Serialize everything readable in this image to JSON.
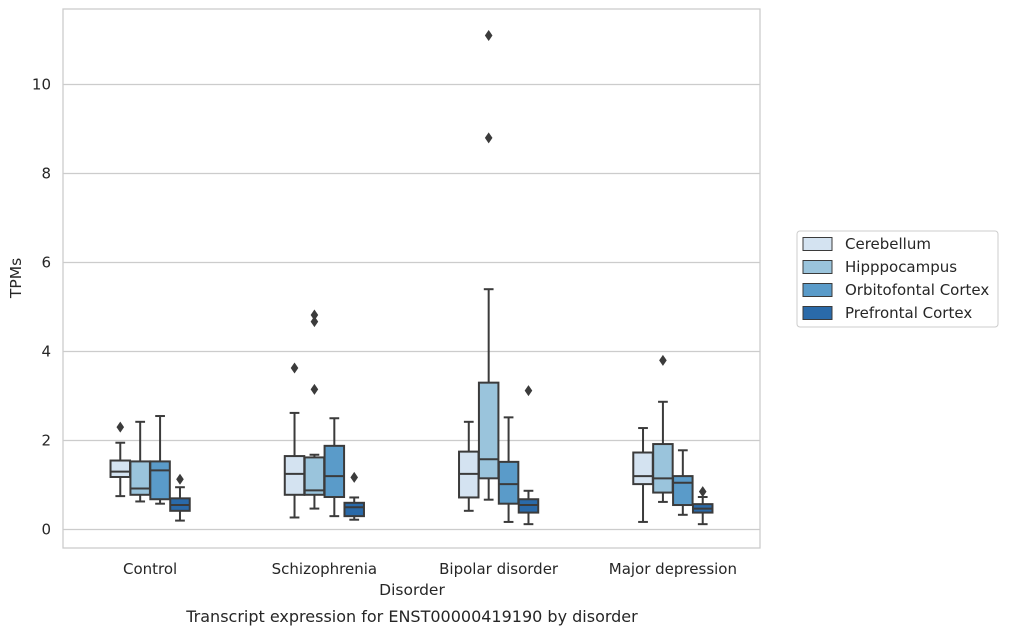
{
  "chart_data": {
    "type": "box",
    "caption": "Transcript expression for ENST00000419190 by disorder",
    "xlabel": "Disorder",
    "ylabel": "TPMs",
    "ylim": [
      -0.4,
      11.6
    ],
    "yticks": [
      0,
      2,
      4,
      6,
      8,
      10
    ],
    "grid": true,
    "legend_position": "right",
    "categories": [
      "Control",
      "Schizophrenia",
      "Bipolar disorder",
      "Major depression"
    ],
    "series": [
      {
        "name": "Cerebellum",
        "color": "#d4e3f1",
        "boxes": [
          {
            "whisker_low": 0.75,
            "q1": 1.18,
            "median": 1.3,
            "q3": 1.55,
            "whisker_high": 1.95,
            "outliers": [
              2.3
            ]
          },
          {
            "whisker_low": 0.27,
            "q1": 0.78,
            "median": 1.25,
            "q3": 1.65,
            "whisker_high": 2.62,
            "outliers": [
              3.63
            ]
          },
          {
            "whisker_low": 0.42,
            "q1": 0.72,
            "median": 1.25,
            "q3": 1.75,
            "whisker_high": 2.42,
            "outliers": []
          },
          {
            "whisker_low": 0.17,
            "q1": 1.02,
            "median": 1.2,
            "q3": 1.73,
            "whisker_high": 2.28,
            "outliers": []
          }
        ]
      },
      {
        "name": "Hipppocampus",
        "color": "#9ac4dc",
        "boxes": [
          {
            "whisker_low": 0.63,
            "q1": 0.78,
            "median": 0.92,
            "q3": 1.53,
            "whisker_high": 2.42,
            "outliers": []
          },
          {
            "whisker_low": 0.47,
            "q1": 0.78,
            "median": 0.88,
            "q3": 1.62,
            "whisker_high": 1.68,
            "outliers": [
              4.67,
              4.82,
              3.15
            ]
          },
          {
            "whisker_low": 0.67,
            "q1": 1.15,
            "median": 1.58,
            "q3": 3.3,
            "whisker_high": 5.4,
            "outliers": [
              8.8,
              11.1
            ]
          },
          {
            "whisker_low": 0.62,
            "q1": 0.83,
            "median": 1.15,
            "q3": 1.92,
            "whisker_high": 2.87,
            "outliers": [
              3.8
            ]
          }
        ]
      },
      {
        "name": "Orbitofontal Cortex",
        "color": "#5a9bc9",
        "boxes": [
          {
            "whisker_low": 0.58,
            "q1": 0.68,
            "median": 1.33,
            "q3": 1.53,
            "whisker_high": 2.55,
            "outliers": []
          },
          {
            "whisker_low": 0.3,
            "q1": 0.73,
            "median": 1.2,
            "q3": 1.88,
            "whisker_high": 2.5,
            "outliers": []
          },
          {
            "whisker_low": 0.17,
            "q1": 0.58,
            "median": 1.02,
            "q3": 1.52,
            "whisker_high": 2.52,
            "outliers": []
          },
          {
            "whisker_low": 0.33,
            "q1": 0.55,
            "median": 1.05,
            "q3": 1.2,
            "whisker_high": 1.78,
            "outliers": []
          }
        ]
      },
      {
        "name": "Prefrontal Cortex",
        "color": "#2a6aa9",
        "boxes": [
          {
            "whisker_low": 0.2,
            "q1": 0.42,
            "median": 0.55,
            "q3": 0.7,
            "whisker_high": 0.95,
            "outliers": [
              1.13
            ]
          },
          {
            "whisker_low": 0.22,
            "q1": 0.3,
            "median": 0.5,
            "q3": 0.6,
            "whisker_high": 0.72,
            "outliers": [
              1.17
            ]
          },
          {
            "whisker_low": 0.12,
            "q1": 0.38,
            "median": 0.55,
            "q3": 0.68,
            "whisker_high": 0.87,
            "outliers": [
              3.12
            ]
          },
          {
            "whisker_low": 0.12,
            "q1": 0.38,
            "median": 0.47,
            "q3": 0.57,
            "whisker_high": 0.73,
            "outliers": [
              0.85
            ]
          }
        ]
      }
    ]
  }
}
